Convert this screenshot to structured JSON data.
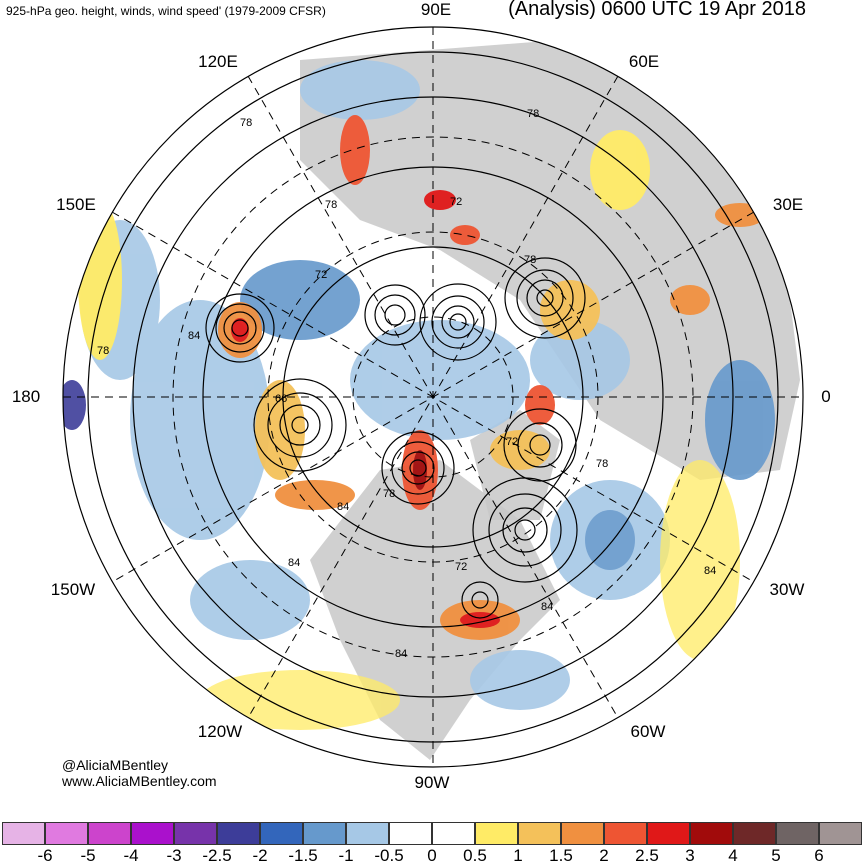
{
  "header": {
    "title_left": "925-hPa geo. height, winds, wind speed' (1979-2009 CFSR)",
    "title_right": "(Analysis) 0600 UTC 19 Apr 2018"
  },
  "longitude_labels": {
    "e90": "90E",
    "e60": "60E",
    "e120": "120E",
    "e150": "150E",
    "e30": "30E",
    "d180": "180",
    "d0": "0",
    "w150": "150W",
    "w30": "30W",
    "w120": "120W",
    "w60": "60W",
    "w90": "90W"
  },
  "contour_labels": [
    "78",
    "78",
    "72",
    "78",
    "72",
    "84",
    "78",
    "66",
    "78",
    "78",
    "72",
    "84",
    "84",
    "72",
    "84",
    "84",
    "84",
    "78"
  ],
  "credits": {
    "handle": "@AliciaMBentley",
    "site": "www.AliciaMBentley.com"
  },
  "colorbar": {
    "ticks": [
      "-6",
      "-5",
      "-4",
      "-3",
      "-2.5",
      "-2",
      "-1.5",
      "-1",
      "-0.5",
      "0",
      "0.5",
      "1",
      "1.5",
      "2",
      "2.5",
      "3",
      "4",
      "5",
      "6"
    ],
    "colors": [
      "#e6b3e6",
      "#e07ae0",
      "#cc44cc",
      "#aa11cc",
      "#7733aa",
      "#3d3d99",
      "#3366bb",
      "#6699cc",
      "#a6c8e6",
      "#ffffff",
      "#ffffff",
      "#ffeb66",
      "#f4c15a",
      "#f09040",
      "#ee5533",
      "#e01818",
      "#a10b0b",
      "#6e2828",
      "#6f6464",
      "#a09494"
    ]
  },
  "colors": {
    "land": "#c8c8c8",
    "ocean": "#ffffff",
    "contour": "#000000"
  }
}
